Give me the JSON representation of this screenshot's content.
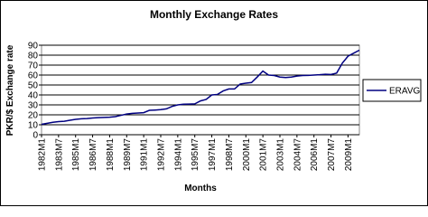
{
  "chart_data": {
    "type": "line",
    "title": "Monthly Exchange Rates",
    "x_label": "Months",
    "y_label": "PKR/$ Exchange rate",
    "categories": [
      "1982M1",
      null,
      null,
      "1983M7",
      null,
      null,
      "1985M1",
      null,
      null,
      "1986M7",
      null,
      null,
      "1988M1",
      null,
      null,
      "1989M7",
      null,
      null,
      "1991M1",
      null,
      null,
      "1992M7",
      null,
      null,
      "1994M1",
      null,
      null,
      "1995M7",
      null,
      null,
      "1997M1",
      null,
      null,
      "1998M7",
      null,
      null,
      "2000M1",
      null,
      null,
      "2001M7",
      null,
      null,
      "2003M1",
      null,
      null,
      "2004M7",
      null,
      null,
      "2006M1",
      null,
      null,
      "2007M7",
      null,
      null,
      "2009M1",
      null,
      null
    ],
    "series": [
      {
        "name": "ERAVG",
        "color": "#000080",
        "values": [
          10.5,
          11.5,
          12.5,
          13.2,
          13.5,
          14.5,
          15.5,
          16,
          16.2,
          16.8,
          17.2,
          17.4,
          17.6,
          18.2,
          19.5,
          20.8,
          21.5,
          21.8,
          22.2,
          24.5,
          24.8,
          25.2,
          26,
          28.5,
          30,
          30.7,
          30.8,
          31,
          34,
          35.5,
          40,
          40.5,
          44,
          46,
          46,
          51,
          51.8,
          52.5,
          58,
          64,
          60,
          59.5,
          58,
          57.5,
          58,
          59,
          59.5,
          59.7,
          60,
          60.3,
          60.8,
          60.6,
          62,
          72,
          79,
          82,
          85
        ]
      }
    ],
    "ylim": [
      0,
      90
    ],
    "yticks": [
      0,
      10,
      20,
      30,
      40,
      50,
      60,
      70,
      80,
      90
    ],
    "grid": true,
    "legend": "right"
  }
}
